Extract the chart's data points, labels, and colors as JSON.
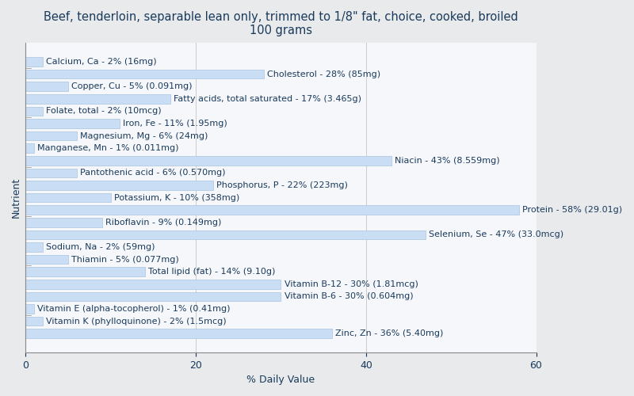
{
  "title": "Beef, tenderloin, separable lean only, trimmed to 1/8\" fat, choice, cooked, broiled\n100 grams",
  "xlabel": "% Daily Value",
  "ylabel": "Nutrient",
  "nutrients": [
    "Calcium, Ca - 2% (16mg)",
    "Cholesterol - 28% (85mg)",
    "Copper, Cu - 5% (0.091mg)",
    "Fatty acids, total saturated - 17% (3.465g)",
    "Folate, total - 2% (10mcg)",
    "Iron, Fe - 11% (1.95mg)",
    "Magnesium, Mg - 6% (24mg)",
    "Manganese, Mn - 1% (0.011mg)",
    "Niacin - 43% (8.559mg)",
    "Pantothenic acid - 6% (0.570mg)",
    "Phosphorus, P - 22% (223mg)",
    "Potassium, K - 10% (358mg)",
    "Protein - 58% (29.01g)",
    "Riboflavin - 9% (0.149mg)",
    "Selenium, Se - 47% (33.0mcg)",
    "Sodium, Na - 2% (59mg)",
    "Thiamin - 5% (0.077mg)",
    "Total lipid (fat) - 14% (9.10g)",
    "Vitamin B-12 - 30% (1.81mcg)",
    "Vitamin B-6 - 30% (0.604mg)",
    "Vitamin E (alpha-tocopherol) - 1% (0.41mg)",
    "Vitamin K (phylloquinone) - 2% (1.5mcg)",
    "Zinc, Zn - 36% (5.40mg)"
  ],
  "values": [
    2,
    28,
    5,
    17,
    2,
    11,
    6,
    1,
    43,
    6,
    22,
    10,
    58,
    9,
    47,
    2,
    5,
    14,
    30,
    30,
    1,
    2,
    36
  ],
  "bar_color": "#c9ddf5",
  "bar_edge_color": "#a8c4e0",
  "background_color": "#e8eaec",
  "plot_background_color": "#f5f7fa",
  "text_color": "#1a3a5c",
  "xlim": [
    0,
    60
  ],
  "xticks": [
    0,
    20,
    40,
    60
  ],
  "grid_color": "#cccccc",
  "title_fontsize": 10.5,
  "label_fontsize": 8,
  "axis_label_fontsize": 9,
  "tick_fontsize": 9
}
